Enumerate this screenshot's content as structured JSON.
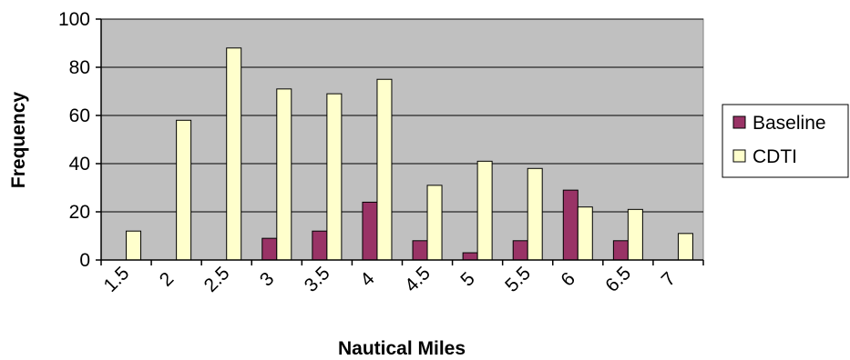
{
  "chart_data": {
    "type": "bar",
    "title": "",
    "xlabel": "Nautical Miles",
    "ylabel": "Frequency",
    "categories": [
      "1.5",
      "2",
      "2.5",
      "3",
      "3.5",
      "4",
      "4.5",
      "5",
      "5.5",
      "6",
      "6.5",
      "7"
    ],
    "ylim": [
      0,
      100
    ],
    "yticks": [
      0,
      20,
      40,
      60,
      80,
      100
    ],
    "grid": "horizontal",
    "legend_position": "right",
    "series": [
      {
        "name": "Baseline",
        "color": "#993366",
        "values": [
          0,
          0,
          0,
          9,
          12,
          24,
          8,
          3,
          8,
          29,
          8,
          0
        ]
      },
      {
        "name": "CDTI",
        "color": "#FFFFCC",
        "values": [
          12,
          58,
          88,
          71,
          69,
          75,
          31,
          41,
          38,
          22,
          21,
          11
        ]
      }
    ],
    "plot_background": "#C0C0C0"
  }
}
